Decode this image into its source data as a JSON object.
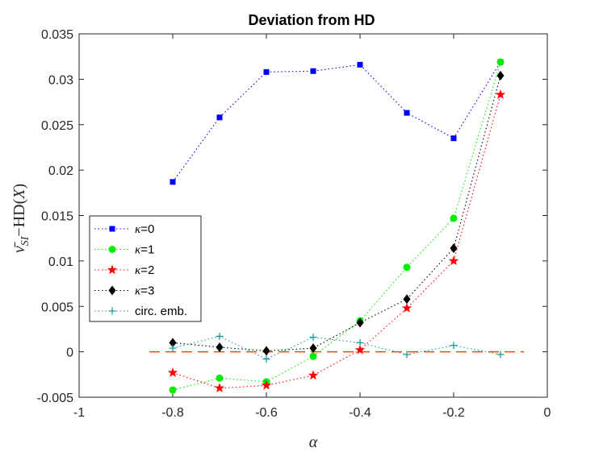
{
  "chart_data": {
    "type": "line",
    "title": "Deviation from HD",
    "xlabel": "α",
    "ylabel_parts": {
      "nu": "ν̄",
      "subscript": "SI",
      "rest": "−HD(",
      "var": "X",
      "close": ")"
    },
    "xlim": [
      -1,
      0
    ],
    "ylim": [
      -0.005,
      0.035
    ],
    "xticks": [
      -1,
      -0.8,
      -0.6,
      -0.4,
      -0.2,
      0
    ],
    "xtick_labels": [
      "-1",
      "-0.8",
      "-0.6",
      "-0.4",
      "-0.2",
      "0"
    ],
    "yticks": [
      -0.005,
      0,
      0.005,
      0.01,
      0.015,
      0.02,
      0.025,
      0.03,
      0.035
    ],
    "ytick_labels": [
      "-0.005",
      "0",
      "0.005",
      "0.01",
      "0.015",
      "0.02",
      "0.025",
      "0.03",
      "0.035"
    ],
    "x": [
      -0.8,
      -0.7,
      -0.6,
      -0.5,
      -0.4,
      -0.3,
      -0.2,
      -0.1
    ],
    "series": [
      {
        "name": "κ=0",
        "legend_kappa": "κ",
        "legend_rest": "=0",
        "color": "#0000ff",
        "marker": "square",
        "values": [
          0.0187,
          0.0258,
          0.0308,
          0.0309,
          0.0316,
          0.0263,
          0.0235,
          0.0319
        ]
      },
      {
        "name": "κ=1",
        "legend_kappa": "κ",
        "legend_rest": "=1",
        "color": "#00ee00",
        "marker": "circle",
        "values": [
          -0.0042,
          -0.0029,
          -0.0033,
          -0.0005,
          0.0034,
          0.0093,
          0.0147,
          0.0319
        ]
      },
      {
        "name": "κ=2",
        "legend_kappa": "κ",
        "legend_rest": "=2",
        "color": "#ff0000",
        "marker": "star",
        "values": [
          -0.0023,
          -0.004,
          -0.0037,
          -0.0026,
          0.0002,
          0.0048,
          0.01,
          0.0283
        ]
      },
      {
        "name": "κ=3",
        "legend_kappa": "κ",
        "legend_rest": "=3",
        "color": "#000000",
        "marker": "diamond",
        "values": [
          0.001,
          0.0005,
          0.0001,
          0.0004,
          0.0032,
          0.0058,
          0.0114,
          0.0304
        ]
      },
      {
        "name": "circ. emb.",
        "legend_kappa": "",
        "legend_rest": "circ. emb.",
        "color": "#1a9a9a",
        "marker": "plus",
        "values": [
          0.0004,
          0.0017,
          -0.0008,
          0.0016,
          0.001,
          -0.0003,
          0.0007,
          -0.0003
        ]
      }
    ],
    "reference_line": {
      "x_start": -0.85,
      "x_end": -0.05,
      "y": 0,
      "color": "#d95319",
      "style": "dashed"
    },
    "legend_position": "middle-left",
    "grid": false
  }
}
